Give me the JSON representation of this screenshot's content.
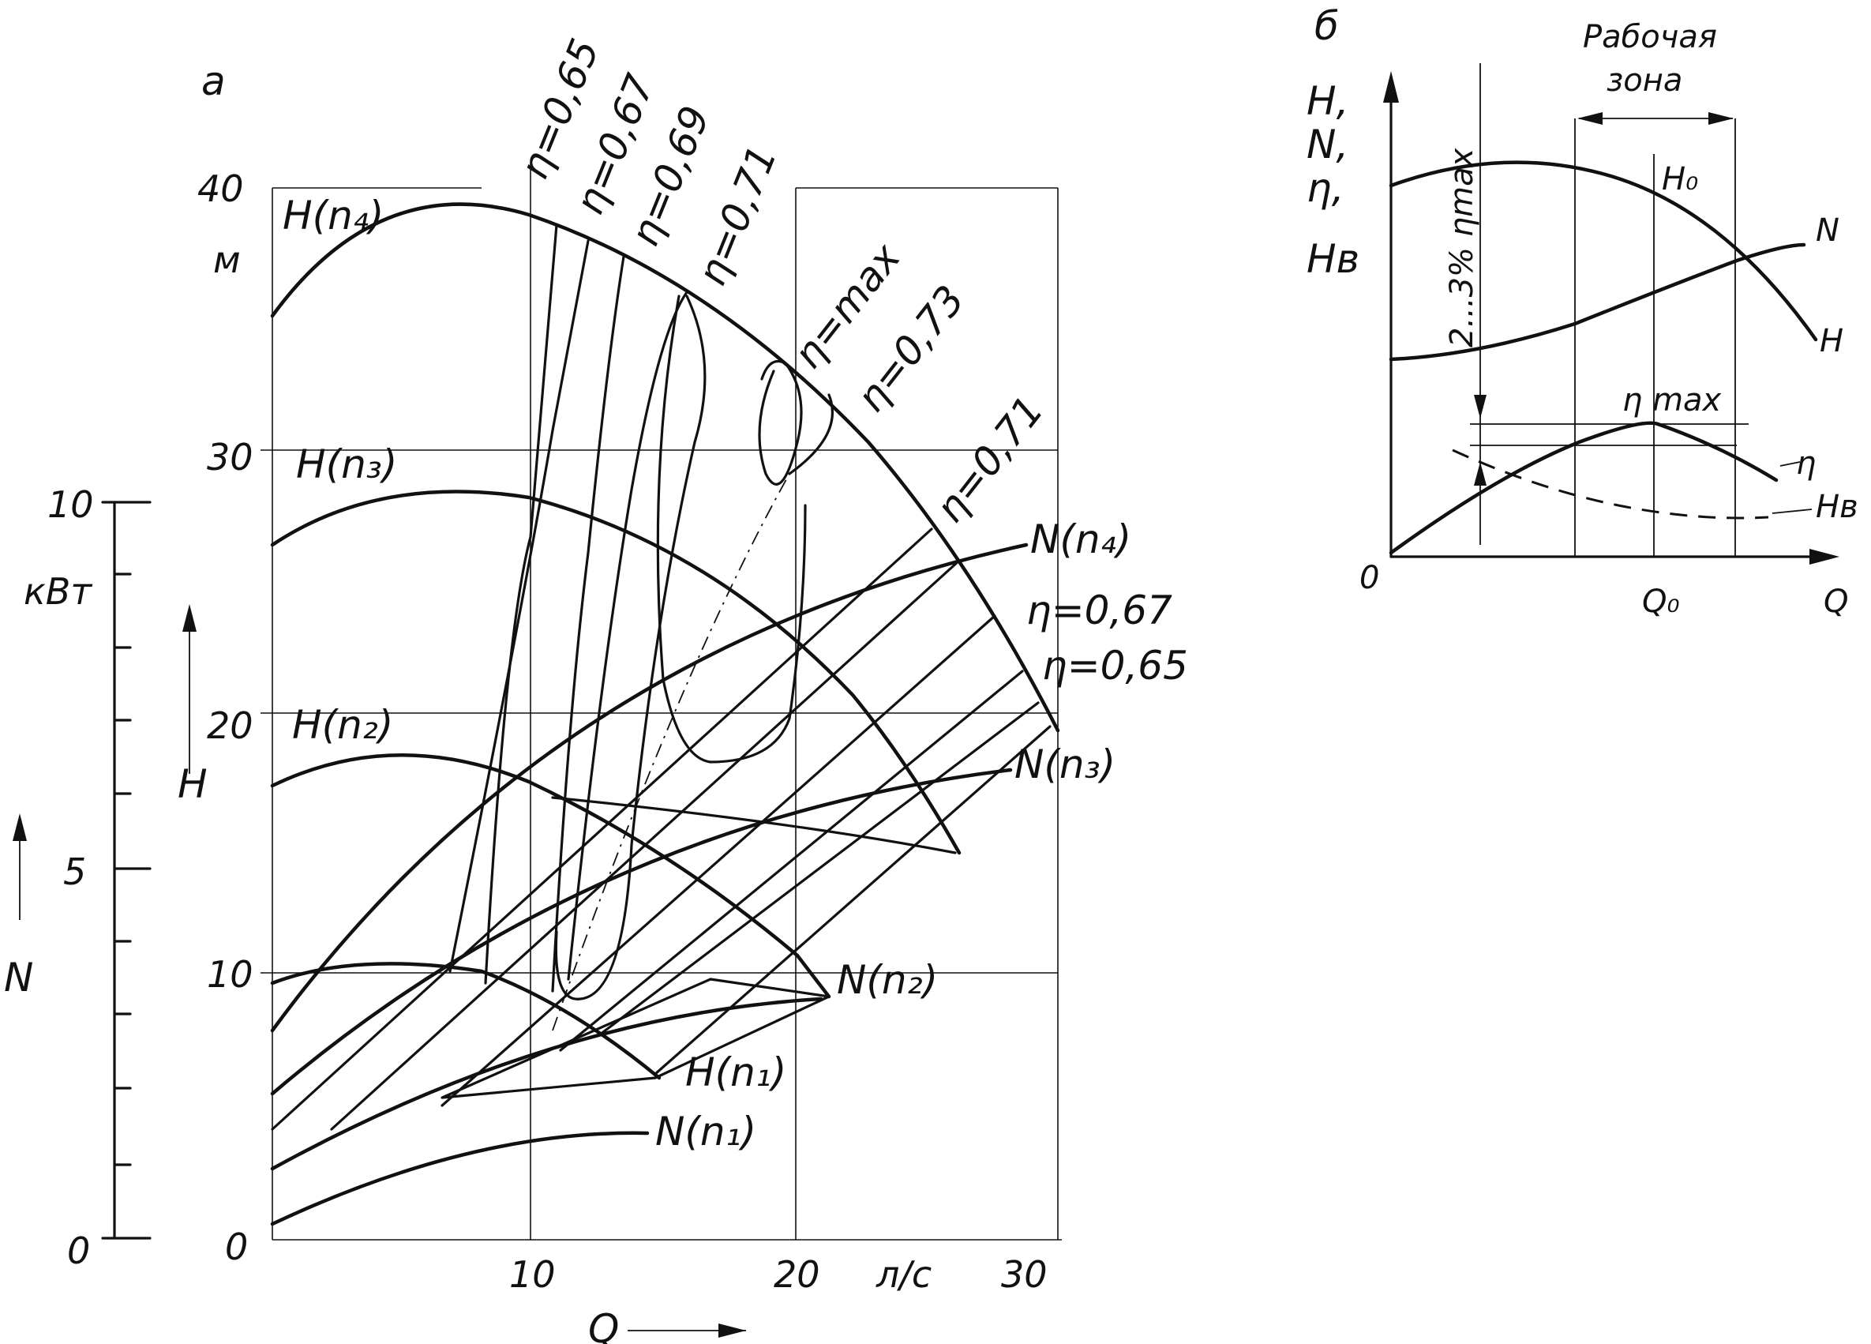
{
  "panel_a": {
    "letter": "а",
    "h_unit": "м",
    "n_unit": "кВт",
    "q_unit": "л/с",
    "h_ticks": [
      "0",
      "10",
      "20",
      "30",
      "40"
    ],
    "n_ticks": [
      "0",
      "5",
      "10"
    ],
    "q_ticks": [
      "10",
      "20",
      "30"
    ],
    "h_axis_label": "H",
    "n_axis_label": "N",
    "q_axis_label": "Q",
    "curve_labels": {
      "h1": "H(n₁)",
      "h2": "H(n₂)",
      "h3": "H(n₃)",
      "h4": "H(n₄)",
      "n1": "N(n₁)",
      "n2": "N(n₂)",
      "n3": "N(n₃)",
      "n4": "N(n₄)"
    },
    "eta_labels": {
      "e065": "η=0,65",
      "e067": "η=0,67",
      "e069": "η=0,69",
      "e071": "η=0,71",
      "emax": "η=max",
      "e073": "η=0,73",
      "e071_r": "η=0,71",
      "e067_r": "η=0,67",
      "e065_r": "η=0,65"
    }
  },
  "panel_b": {
    "letter": "б",
    "y_labels": [
      "H,",
      "N,",
      "η,",
      "Hв"
    ],
    "zone_label_1": "Рабочая",
    "zone_label_2": "зона",
    "reserve_label": "2...3% ηmax",
    "eta_max_label": "η max",
    "h0_label": "H₀",
    "q0_label": "Q₀",
    "origin_label": "0",
    "q_label": "Q",
    "curve_n": "N",
    "curve_h": "H",
    "curve_eta": "η",
    "curve_hv": "Hв"
  }
}
